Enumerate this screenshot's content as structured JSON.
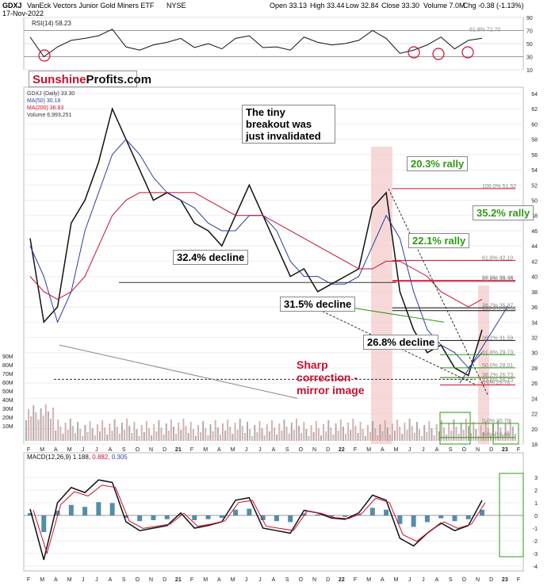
{
  "header": {
    "symbol": "GDXJ",
    "name": "VanEck Vectors Junior Gold Miners ETF",
    "exchange": "NYSE",
    "date": "17-Nov-2022",
    "open": "Open 33.13",
    "high": "High 33.44",
    "low": "Low 32.84",
    "close": "Close 33.30",
    "volume": "Volume 7.0M",
    "chg": "Chg -0.38 (-1.13%)"
  },
  "logo": {
    "part1": "Sunshine",
    "part2": "Profits.com"
  },
  "rsi": {
    "label": "RSI(14) 58.23",
    "ticks": [
      "90",
      "70",
      "50",
      "30",
      "10"
    ]
  },
  "price_legend": [
    "GDXJ (Daily) 33.30",
    "MA(50) 30.18",
    "MA(200) 36.83",
    "Volume 6,993,251"
  ],
  "price_ticks": [
    "64",
    "62",
    "60",
    "58",
    "56",
    "54",
    "52",
    "50",
    "48",
    "46",
    "44",
    "42",
    "40",
    "38",
    "36",
    "34",
    "32",
    "30",
    "28",
    "26",
    "24",
    "22",
    "20",
    "18"
  ],
  "volume_ticks": [
    "90M",
    "80M",
    "70M",
    "60M",
    "50M",
    "40M",
    "30M",
    "20M",
    "10M"
  ],
  "macd": {
    "label": "MACD(12,26,9)",
    "v1": "1.188",
    "v2": "0.882",
    "v3": "0.305",
    "ticks": [
      "3",
      "2",
      "1",
      "0",
      "-1",
      "-2",
      "-3",
      "-4"
    ]
  },
  "month_ticks": [
    "F",
    "M",
    "A",
    "M",
    "J",
    "J",
    "A",
    "S",
    "O",
    "N",
    "D",
    "21",
    "F",
    "M",
    "A",
    "M",
    "J",
    "J",
    "A",
    "S",
    "O",
    "N",
    "D",
    "22",
    "F",
    "M",
    "A",
    "M",
    "J",
    "J",
    "A",
    "S",
    "O",
    "N",
    "D",
    "23",
    "F"
  ],
  "fib_labels": [
    "100.0% 51.52",
    "61.8% 42.10",
    "50.0% 39.48",
    "61.8% 39.35",
    "38.2% 35.87",
    "100.0% 35.51",
    "38.2% 31.59",
    "61.8% 29.73",
    "50.0% 28.01",
    "38.2% 26.73",
    "23.6% 26.73",
    "0.0% 25.76",
    "0.0% 20.70",
    "0.0% 18.86"
  ],
  "rsi_fib": "61.8% 72.70",
  "annotations": {
    "breakout": "The tiny breakout was just invalidated",
    "rally1": "20.3% rally",
    "rally2": "35.2% rally",
    "rally3": "22.1% rally",
    "decline1": "32.4% decline",
    "decline2": "31.5% decline",
    "decline3": "26.8% decline",
    "sharp": "Sharp correction - mirror image"
  },
  "colors": {
    "ma50": "#2a3fa0",
    "ma200": "#c8102e",
    "up": "#111111",
    "down": "#c8102e",
    "green": "#2e9a12",
    "highlight": "#f4c7c7"
  },
  "chart_data": {
    "type": "line",
    "x": [
      "2020-02",
      "2020-03",
      "2020-04",
      "2020-05",
      "2020-06",
      "2020-07",
      "2020-08",
      "2020-09",
      "2020-10",
      "2020-11",
      "2020-12",
      "2021-01",
      "2021-02",
      "2021-03",
      "2021-04",
      "2021-05",
      "2021-06",
      "2021-07",
      "2021-08",
      "2021-09",
      "2021-10",
      "2021-11",
      "2021-12",
      "2022-01",
      "2022-02",
      "2022-03",
      "2022-04",
      "2022-05",
      "2022-06",
      "2022-07",
      "2022-08",
      "2022-09",
      "2022-10",
      "2022-11"
    ],
    "series": [
      {
        "name": "GDXJ (Daily) 33.30",
        "values": [
          45,
          34,
          36,
          47,
          50,
          55,
          62,
          58,
          54,
          50,
          51,
          50,
          47,
          46,
          44,
          48,
          52,
          48,
          44,
          40,
          41,
          38,
          39,
          40,
          41,
          49,
          51,
          38,
          33,
          30,
          31,
          28,
          27,
          33
        ]
      },
      {
        "name": "MA(50) 30.18",
        "values": [
          44,
          40,
          34,
          38,
          46,
          51,
          56,
          58,
          56,
          53,
          51,
          50,
          49,
          47,
          46,
          46,
          48,
          48,
          46,
          42,
          40,
          40,
          39,
          39,
          40,
          44,
          48,
          45,
          38,
          33,
          31,
          30,
          28,
          30
        ]
      },
      {
        "name": "MA(200) 36.83",
        "values": [
          40,
          38,
          37,
          38,
          40,
          44,
          48,
          50,
          51,
          51,
          51,
          51,
          51,
          50,
          49,
          48,
          48,
          48,
          47,
          46,
          45,
          44,
          43,
          42,
          41,
          41,
          42,
          42,
          41,
          40,
          38,
          37,
          36,
          37
        ]
      }
    ],
    "macd": {
      "type": "line",
      "series": [
        {
          "name": "MACD(12,26,9)",
          "values": [
            0.5,
            -3.5,
            1.0,
            2.2,
            1.8,
            2.8,
            2.6,
            -0.5,
            -1.2,
            -1.0,
            -0.8,
            0.2,
            -1.0,
            -0.8,
            -0.5,
            1.2,
            1.4,
            -1.0,
            -1.2,
            -1.4,
            0.4,
            0.2,
            -0.2,
            -0.3,
            0.2,
            1.6,
            1.2,
            -1.8,
            -2.4,
            -1.4,
            -0.6,
            -1.2,
            -0.8,
            1.188
          ]
        }
      ]
    },
    "rsi": {
      "type": "line",
      "values": [
        60,
        30,
        45,
        55,
        58,
        62,
        72,
        45,
        40,
        48,
        52,
        58,
        44,
        50,
        42,
        58,
        62,
        44,
        45,
        40,
        60,
        52,
        48,
        50,
        55,
        70,
        58,
        35,
        40,
        48,
        60,
        42,
        55,
        58.23
      ]
    },
    "ylim": [
      18,
      64
    ],
    "title": "GDXJ VanEck Vectors Junior Gold Miners ETF NYSE"
  }
}
